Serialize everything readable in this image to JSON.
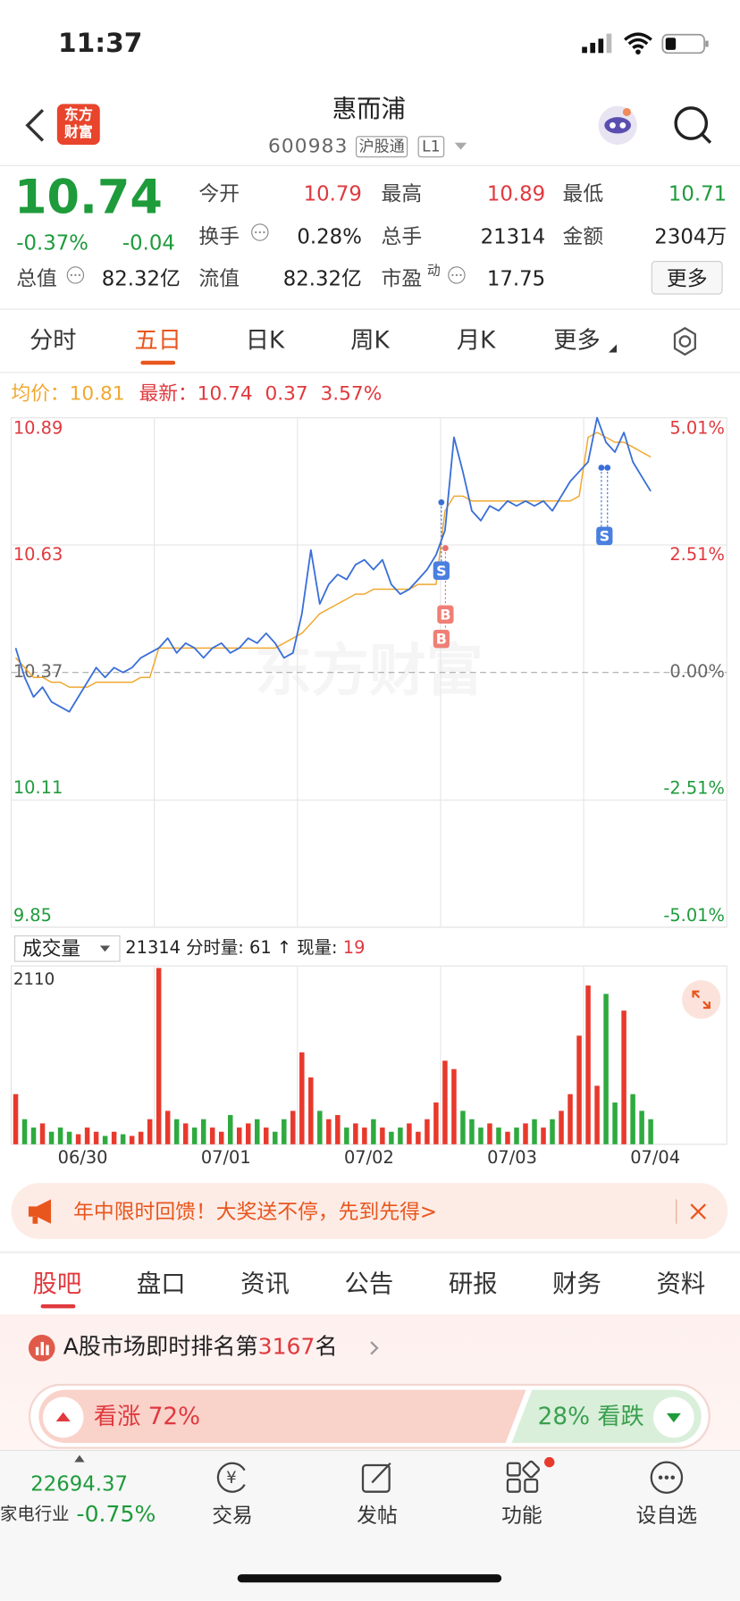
{
  "status_bar": {
    "time": "11:37"
  },
  "header": {
    "logo": [
      "东方",
      "财富"
    ],
    "title": "惠而浦",
    "code": "600983",
    "tags": [
      "沪股通",
      "L1"
    ]
  },
  "quote": {
    "price": "10.74",
    "change_pct": "-0.37%",
    "change": "-0.04",
    "total_value_label": "总值",
    "total_value": "82.32亿",
    "fields": [
      {
        "label": "今开",
        "value": "10.79"
      },
      {
        "label": "最高",
        "value": "10.89"
      },
      {
        "label": "最低",
        "value": "10.71"
      },
      {
        "label": "换手",
        "value": "0.28%"
      },
      {
        "label": "总手",
        "value": "21314"
      },
      {
        "label": "金额",
        "value": "2304万"
      },
      {
        "label": "流值",
        "value": "82.32亿"
      },
      {
        "label": "市盈",
        "sup": "动",
        "value": "17.75"
      }
    ],
    "more": "更多"
  },
  "tabs": [
    "分时",
    "五日",
    "日K",
    "周K",
    "月K",
    "更多"
  ],
  "chart_legend": {
    "avg_label": "均价：",
    "avg": "10.81",
    "latest_label": "最新：",
    "latest": "10.74",
    "change": "0.37",
    "change_pct": "3.57%"
  },
  "price_chart": {
    "type": "line",
    "categories": [
      "06/30",
      "07/01",
      "07/02",
      "07/03",
      "07/04"
    ],
    "ylim": [
      9.85,
      10.89
    ],
    "yticks": [
      10.89,
      10.63,
      10.37,
      10.11,
      9.85
    ],
    "y2lim": [
      -5.01,
      5.01
    ],
    "y2ticks": [
      {
        "value": 5.01,
        "label": "5.01%"
      },
      {
        "value": 2.51,
        "label": "2.51%"
      },
      {
        "value": 0,
        "label": "0.00%"
      },
      {
        "value": -2.51,
        "label": "-2.51%"
      },
      {
        "value": -5.01,
        "label": "-5.01%"
      }
    ],
    "series": [
      {
        "color": "#3a6fd8",
        "values": [
          10.42,
          10.36,
          10.32,
          10.34,
          10.31,
          10.3,
          10.29,
          10.32,
          10.35,
          10.38,
          10.36,
          10.38,
          10.37,
          10.38,
          10.4,
          10.41,
          10.42,
          10.44,
          10.41,
          10.43,
          10.42,
          10.4,
          10.42,
          10.43,
          10.41,
          10.42,
          10.44,
          10.43,
          10.45,
          10.43,
          10.4,
          10.41,
          10.49,
          10.62,
          10.51,
          10.55,
          10.57,
          10.56,
          10.59,
          10.6,
          10.58,
          10.6,
          10.55,
          10.53,
          10.54,
          10.56,
          10.58,
          10.61,
          10.66,
          10.85,
          10.78,
          10.7,
          10.68,
          10.71,
          10.7,
          10.72,
          10.71,
          10.72,
          10.71,
          10.72,
          10.7,
          10.73,
          10.76,
          10.78,
          10.8,
          10.89,
          10.84,
          10.82,
          10.86,
          10.8,
          10.77,
          10.74,
          null,
          null,
          null,
          null,
          null,
          null,
          null,
          null
        ]
      },
      {
        "color": "#f0a830",
        "values": [
          10.4,
          10.38,
          10.36,
          10.36,
          10.35,
          10.35,
          10.34,
          10.34,
          10.34,
          10.35,
          10.35,
          10.35,
          10.35,
          10.35,
          10.36,
          10.36,
          10.42,
          10.42,
          10.42,
          10.42,
          10.42,
          10.42,
          10.42,
          10.42,
          10.42,
          10.42,
          10.42,
          10.42,
          10.42,
          10.42,
          10.43,
          10.44,
          10.45,
          10.47,
          10.49,
          10.5,
          10.51,
          10.52,
          10.53,
          10.53,
          10.54,
          10.54,
          10.54,
          10.54,
          10.54,
          10.55,
          10.55,
          10.55,
          10.7,
          10.73,
          10.73,
          10.72,
          10.72,
          10.72,
          10.72,
          10.72,
          10.72,
          10.72,
          10.72,
          10.72,
          10.72,
          10.72,
          10.72,
          10.73,
          10.85,
          10.86,
          10.85,
          10.84,
          10.84,
          10.83,
          10.82,
          10.81,
          null,
          null,
          null,
          null,
          null,
          null,
          null,
          null
        ]
      }
    ],
    "watermark": "东方财富",
    "trade_marks": [
      "S",
      "B",
      "B",
      "S"
    ]
  },
  "volume_chart": {
    "type": "bar",
    "selector": "成交量",
    "total": "21314",
    "detail": "分时量: 61 ↑",
    "current_label": "现量:",
    "current": "19",
    "ylim": [
      0,
      2110
    ],
    "yticks": [
      2110
    ],
    "values": [
      600,
      300,
      200,
      250,
      150,
      200,
      150,
      120,
      200,
      150,
      100,
      150,
      120,
      100,
      150,
      300,
      2110,
      400,
      300,
      250,
      200,
      300,
      200,
      150,
      350,
      200,
      250,
      300,
      200,
      150,
      300,
      400,
      1100,
      800,
      400,
      300,
      350,
      200,
      250,
      200,
      300,
      200,
      150,
      200,
      250,
      150,
      300,
      500,
      1000,
      900,
      400,
      300,
      200,
      250,
      200,
      150,
      200,
      250,
      300,
      200,
      300,
      400,
      600,
      1300,
      1900,
      700,
      1800,
      500,
      1600,
      600,
      400,
      300,
      null,
      null,
      null,
      null,
      null,
      null,
      null,
      null
    ]
  },
  "banner": "年中限时回馈！大奖送不停，先到先得>",
  "community_tabs": [
    "股吧",
    "盘口",
    "资讯",
    "公告",
    "研报",
    "财务",
    "资料"
  ],
  "ranking": {
    "prefix": "A股市场即时排名第",
    "rank": "3167",
    "suffix": "名"
  },
  "sentiment": {
    "bull": "看涨 72%",
    "bear": "28% 看跌"
  },
  "bottom_bar": {
    "index_value": "22694.37",
    "sector": "家电行业",
    "sector_change": "-0.75%",
    "items": [
      "交易",
      "发帖",
      "功能",
      "设自选"
    ]
  }
}
